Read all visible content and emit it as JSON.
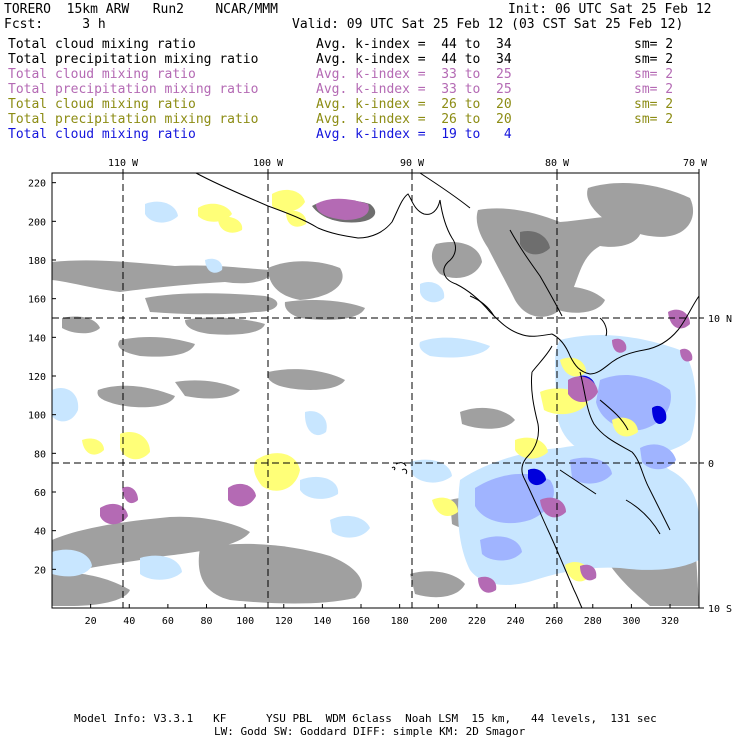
{
  "header": {
    "title_left": "TORERO  15km ARW   Run2    NCAR/MMM",
    "init": "Init: 06 UTC Sat 25 Feb 12",
    "fcst": "Fcst:     3 h",
    "valid": "Valid: 09 UTC Sat 25 Feb 12 (03 CST Sat 25 Feb 12)"
  },
  "legend": [
    {
      "field": "Total cloud mixing ratio",
      "index": "Avg. k-index =  44 to  34",
      "sm": "sm= 2",
      "color": "#000000"
    },
    {
      "field": "Total precipitation mixing ratio",
      "index": "Avg. k-index =  44 to  34",
      "sm": "sm= 2",
      "color": "#000000"
    },
    {
      "field": "Total cloud mixing ratio",
      "index": "Avg. k-index =  33 to  25",
      "sm": "sm= 2",
      "color": "#b46ab4"
    },
    {
      "field": "Total precipitation mixing ratio",
      "index": "Avg. k-index =  33 to  25",
      "sm": "sm= 2",
      "color": "#b46ab4"
    },
    {
      "field": "Total cloud mixing ratio",
      "index": "Avg. k-index =  26 to  20",
      "sm": "sm= 2",
      "color": "#8c8c14"
    },
    {
      "field": "Total precipitation mixing ratio",
      "index": "Avg. k-index =  26 to  20",
      "sm": "sm= 2",
      "color": "#8c8c14"
    },
    {
      "field": "Total cloud mixing ratio",
      "index": "Avg. k-index =  19 to   4",
      "sm": "",
      "color": "#1414dc"
    }
  ],
  "axes": {
    "lon_labels": [
      "110 W",
      "100 W",
      "90 W",
      "80 W",
      "70 W"
    ],
    "lat_labels": [
      "10 N",
      "0",
      "10 S"
    ],
    "x_ticks": [
      "20",
      "40",
      "60",
      "80",
      "100",
      "120",
      "140",
      "160",
      "180",
      "200",
      "220",
      "240",
      "260",
      "280",
      "300",
      "320"
    ],
    "y_ticks": [
      "220",
      "200",
      "180",
      "160",
      "140",
      "120",
      "100",
      "80",
      "60",
      "40",
      "20"
    ]
  },
  "footer": {
    "line1": "Model Info: V3.3.1   KF      YSU PBL  WDM 6class  Noah LSM  15 km,   44 levels,  131 sec",
    "line2": "LW: Godd SW: Goddard DIFF: simple KM: 2D Smagor"
  },
  "colors": {
    "gray": "#a0a0a0",
    "dark_gray": "#6e6e6e",
    "yellow": "#ffff78",
    "purple": "#b46ab4",
    "light_blue": "#c8e6ff",
    "mid_blue": "#a0b4ff",
    "blue": "#0000dc"
  }
}
